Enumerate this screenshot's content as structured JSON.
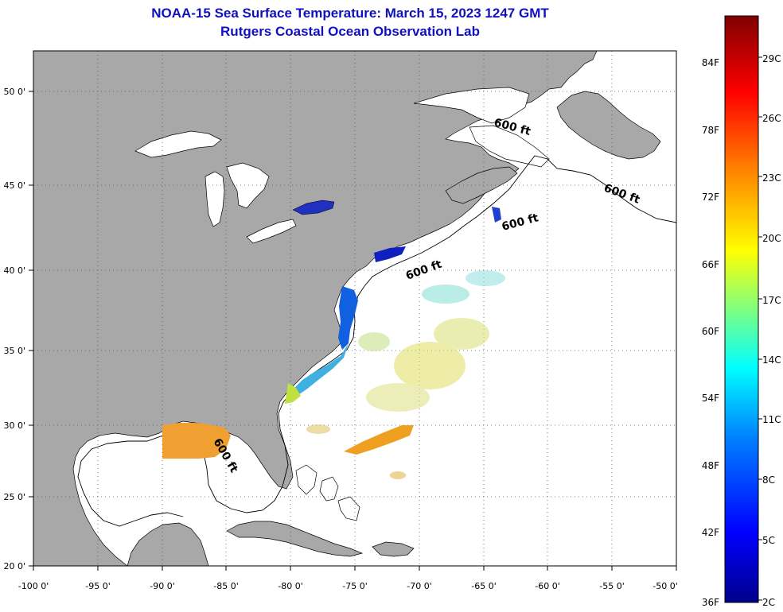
{
  "title": {
    "line1": "NOAA-15 Sea Surface Temperature:  March 15, 2023 1247 GMT",
    "line2": "Rutgers Coastal Ocean Observation Lab"
  },
  "map": {
    "lon_range": [
      -100,
      -50
    ],
    "lat_range": [
      20,
      52.5
    ],
    "x_ticks": [
      "-100 0'",
      "-95 0'",
      "-90 0'",
      "-85 0'",
      "-80 0'",
      "-75 0'",
      "-70 0'",
      "-65 0'",
      "-60 0'",
      "-55 0'",
      "-50 0'"
    ],
    "y_ticks": [
      "50 0'",
      "45 0'",
      "40 0'",
      "35 0'",
      "30 0'",
      "25 0'",
      "20 0'"
    ],
    "isobath_labels": [
      "600 ft",
      "600 ft",
      "600 ft",
      "600 ft",
      "600 ft"
    ],
    "colors": {
      "land": "#a8a8a8",
      "ocean_no_data": "#ffffff",
      "lake": "#ffffff",
      "grid": "#555555"
    }
  },
  "colorbar": {
    "fahrenheit_labels": [
      "84F",
      "78F",
      "72F",
      "66F",
      "60F",
      "54F",
      "48F",
      "42F",
      "36F"
    ],
    "celsius_labels": [
      "29C",
      "26C",
      "23C",
      "20C",
      "17C",
      "14C",
      "11C",
      "8C",
      "5C",
      "2C"
    ],
    "colors": [
      "#00008b",
      "#0000ff",
      "#0080ff",
      "#00ffff",
      "#80ff80",
      "#ffff00",
      "#ff8000",
      "#ff0000",
      "#800000"
    ]
  }
}
